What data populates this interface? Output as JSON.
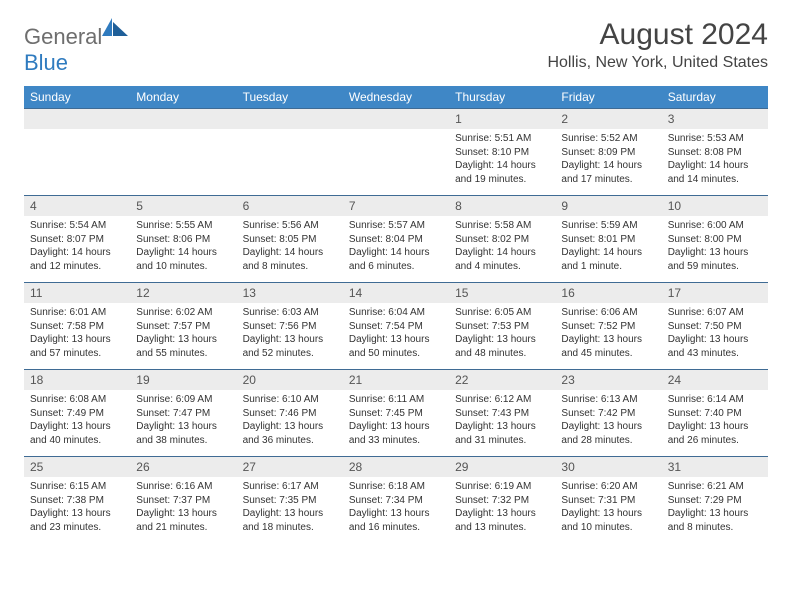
{
  "logo": {
    "text_general": "General",
    "text_blue": "Blue"
  },
  "title": "August 2024",
  "location": "Hollis, New York, United States",
  "colors": {
    "header_bg": "#3f87c6",
    "header_text": "#ffffff",
    "row_border": "#3f6b94",
    "daynum_bg": "#ececec",
    "logo_gray": "#6e6e6e",
    "logo_blue": "#2f7bbf"
  },
  "day_headers": [
    "Sunday",
    "Monday",
    "Tuesday",
    "Wednesday",
    "Thursday",
    "Friday",
    "Saturday"
  ],
  "weeks": [
    [
      null,
      null,
      null,
      null,
      {
        "n": "1",
        "sr": "5:51 AM",
        "ss": "8:10 PM",
        "dl": "14 hours and 19 minutes."
      },
      {
        "n": "2",
        "sr": "5:52 AM",
        "ss": "8:09 PM",
        "dl": "14 hours and 17 minutes."
      },
      {
        "n": "3",
        "sr": "5:53 AM",
        "ss": "8:08 PM",
        "dl": "14 hours and 14 minutes."
      }
    ],
    [
      {
        "n": "4",
        "sr": "5:54 AM",
        "ss": "8:07 PM",
        "dl": "14 hours and 12 minutes."
      },
      {
        "n": "5",
        "sr": "5:55 AM",
        "ss": "8:06 PM",
        "dl": "14 hours and 10 minutes."
      },
      {
        "n": "6",
        "sr": "5:56 AM",
        "ss": "8:05 PM",
        "dl": "14 hours and 8 minutes."
      },
      {
        "n": "7",
        "sr": "5:57 AM",
        "ss": "8:04 PM",
        "dl": "14 hours and 6 minutes."
      },
      {
        "n": "8",
        "sr": "5:58 AM",
        "ss": "8:02 PM",
        "dl": "14 hours and 4 minutes."
      },
      {
        "n": "9",
        "sr": "5:59 AM",
        "ss": "8:01 PM",
        "dl": "14 hours and 1 minute."
      },
      {
        "n": "10",
        "sr": "6:00 AM",
        "ss": "8:00 PM",
        "dl": "13 hours and 59 minutes."
      }
    ],
    [
      {
        "n": "11",
        "sr": "6:01 AM",
        "ss": "7:58 PM",
        "dl": "13 hours and 57 minutes."
      },
      {
        "n": "12",
        "sr": "6:02 AM",
        "ss": "7:57 PM",
        "dl": "13 hours and 55 minutes."
      },
      {
        "n": "13",
        "sr": "6:03 AM",
        "ss": "7:56 PM",
        "dl": "13 hours and 52 minutes."
      },
      {
        "n": "14",
        "sr": "6:04 AM",
        "ss": "7:54 PM",
        "dl": "13 hours and 50 minutes."
      },
      {
        "n": "15",
        "sr": "6:05 AM",
        "ss": "7:53 PM",
        "dl": "13 hours and 48 minutes."
      },
      {
        "n": "16",
        "sr": "6:06 AM",
        "ss": "7:52 PM",
        "dl": "13 hours and 45 minutes."
      },
      {
        "n": "17",
        "sr": "6:07 AM",
        "ss": "7:50 PM",
        "dl": "13 hours and 43 minutes."
      }
    ],
    [
      {
        "n": "18",
        "sr": "6:08 AM",
        "ss": "7:49 PM",
        "dl": "13 hours and 40 minutes."
      },
      {
        "n": "19",
        "sr": "6:09 AM",
        "ss": "7:47 PM",
        "dl": "13 hours and 38 minutes."
      },
      {
        "n": "20",
        "sr": "6:10 AM",
        "ss": "7:46 PM",
        "dl": "13 hours and 36 minutes."
      },
      {
        "n": "21",
        "sr": "6:11 AM",
        "ss": "7:45 PM",
        "dl": "13 hours and 33 minutes."
      },
      {
        "n": "22",
        "sr": "6:12 AM",
        "ss": "7:43 PM",
        "dl": "13 hours and 31 minutes."
      },
      {
        "n": "23",
        "sr": "6:13 AM",
        "ss": "7:42 PM",
        "dl": "13 hours and 28 minutes."
      },
      {
        "n": "24",
        "sr": "6:14 AM",
        "ss": "7:40 PM",
        "dl": "13 hours and 26 minutes."
      }
    ],
    [
      {
        "n": "25",
        "sr": "6:15 AM",
        "ss": "7:38 PM",
        "dl": "13 hours and 23 minutes."
      },
      {
        "n": "26",
        "sr": "6:16 AM",
        "ss": "7:37 PM",
        "dl": "13 hours and 21 minutes."
      },
      {
        "n": "27",
        "sr": "6:17 AM",
        "ss": "7:35 PM",
        "dl": "13 hours and 18 minutes."
      },
      {
        "n": "28",
        "sr": "6:18 AM",
        "ss": "7:34 PM",
        "dl": "13 hours and 16 minutes."
      },
      {
        "n": "29",
        "sr": "6:19 AM",
        "ss": "7:32 PM",
        "dl": "13 hours and 13 minutes."
      },
      {
        "n": "30",
        "sr": "6:20 AM",
        "ss": "7:31 PM",
        "dl": "13 hours and 10 minutes."
      },
      {
        "n": "31",
        "sr": "6:21 AM",
        "ss": "7:29 PM",
        "dl": "13 hours and 8 minutes."
      }
    ]
  ],
  "labels": {
    "sunrise": "Sunrise: ",
    "sunset": "Sunset: ",
    "daylight": "Daylight: "
  }
}
